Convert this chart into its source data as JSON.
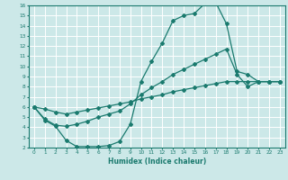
{
  "xlabel": "Humidex (Indice chaleur)",
  "bg_color": "#cce8e8",
  "grid_color": "#ffffff",
  "line_color": "#1a7a6e",
  "xlim": [
    -0.5,
    23.5
  ],
  "ylim": [
    2,
    16
  ],
  "yticks": [
    2,
    3,
    4,
    5,
    6,
    7,
    8,
    9,
    10,
    11,
    12,
    13,
    14,
    15,
    16
  ],
  "xticks": [
    0,
    1,
    2,
    3,
    4,
    5,
    6,
    7,
    8,
    9,
    10,
    11,
    12,
    13,
    14,
    15,
    16,
    17,
    18,
    19,
    20,
    21,
    22,
    23
  ],
  "line1_x": [
    0,
    1,
    2,
    3,
    4,
    5,
    6,
    7,
    8,
    9,
    10,
    11,
    12,
    13,
    14,
    15,
    16,
    17,
    18,
    19,
    20,
    21,
    22,
    23
  ],
  "line1_y": [
    6.0,
    4.7,
    4.1,
    2.7,
    2.1,
    2.1,
    2.1,
    2.2,
    2.6,
    4.3,
    8.5,
    10.5,
    12.3,
    14.5,
    15.0,
    15.2,
    16.2,
    16.3,
    14.2,
    9.5,
    9.2,
    8.5,
    8.5,
    8.5
  ],
  "line2_x": [
    0,
    1,
    2,
    3,
    4,
    5,
    6,
    7,
    8,
    9,
    10,
    11,
    12,
    13,
    14,
    15,
    16,
    17,
    18,
    19,
    20,
    21,
    22,
    23
  ],
  "line2_y": [
    6.0,
    4.8,
    4.2,
    4.1,
    4.3,
    4.6,
    5.0,
    5.3,
    5.6,
    6.3,
    7.2,
    7.9,
    8.5,
    9.2,
    9.7,
    10.2,
    10.7,
    11.2,
    11.7,
    9.2,
    8.0,
    8.5,
    8.5,
    8.5
  ],
  "line3_x": [
    0,
    1,
    2,
    3,
    4,
    5,
    6,
    7,
    8,
    9,
    10,
    11,
    12,
    13,
    14,
    15,
    16,
    17,
    18,
    19,
    20,
    21,
    22,
    23
  ],
  "line3_y": [
    6.0,
    5.8,
    5.5,
    5.3,
    5.5,
    5.7,
    5.9,
    6.1,
    6.3,
    6.5,
    6.8,
    7.0,
    7.2,
    7.5,
    7.7,
    7.9,
    8.1,
    8.3,
    8.5,
    8.5,
    8.5,
    8.5,
    8.5,
    8.5
  ]
}
